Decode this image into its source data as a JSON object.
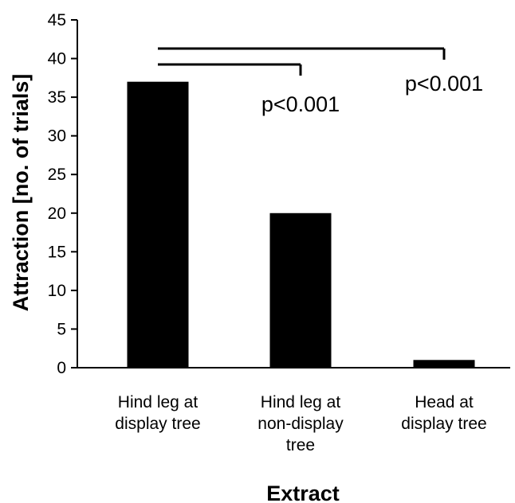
{
  "chart_data": {
    "type": "bar",
    "title": "",
    "xlabel": "Extract",
    "ylabel": "Attraction [no. of trials]",
    "ylim": [
      0,
      45
    ],
    "yticks": [
      0,
      5,
      10,
      15,
      20,
      25,
      30,
      35,
      40,
      45
    ],
    "categories": [
      [
        "Hind leg at",
        "display tree"
      ],
      [
        "Hind leg at",
        "non-display",
        "tree"
      ],
      [
        "Head at",
        "display tree"
      ]
    ],
    "values": [
      37,
      20,
      1
    ],
    "grid": false,
    "legend": "none",
    "colors": {
      "bar": "#000000",
      "axis": "#000000",
      "background": "#ffffff"
    },
    "annotations": [
      {
        "from_category": 0,
        "to_category": 1,
        "text": "p<0.001"
      },
      {
        "from_category": 0,
        "to_category": 2,
        "text": "p<0.001"
      }
    ]
  }
}
